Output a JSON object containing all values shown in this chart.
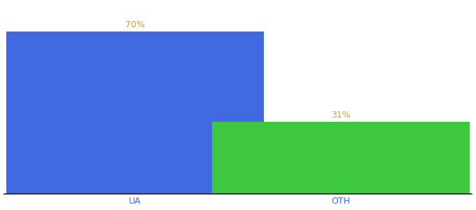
{
  "categories": [
    "UA",
    "OTH"
  ],
  "values": [
    70,
    31
  ],
  "bar_colors": [
    "#4169e1",
    "#3dc83d"
  ],
  "label_color": "#c8a040",
  "label_fontsize": 9,
  "tick_label_color": "#4169e1",
  "tick_label_fontsize": 9,
  "background_color": "#ffffff",
  "ylim": [
    0,
    82
  ],
  "bar_width": 0.55,
  "x_positions": [
    0.28,
    0.72
  ],
  "xlim": [
    0.0,
    1.0
  ],
  "spine_color": "#222222"
}
